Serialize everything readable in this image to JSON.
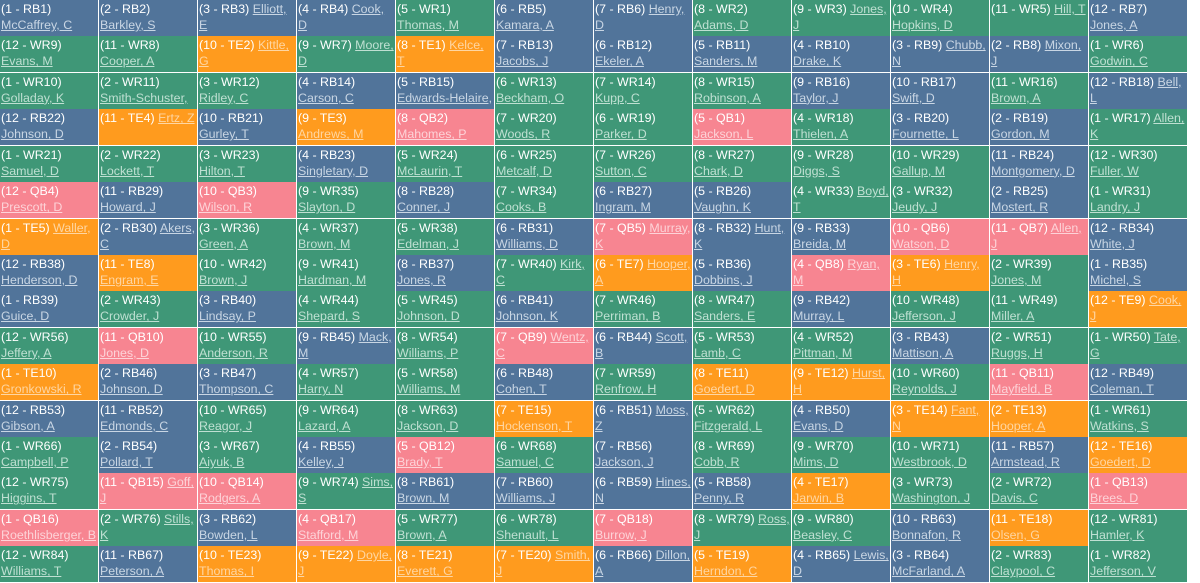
{
  "colors": {
    "RB": "#51749a",
    "WR": "#3f9777",
    "TE": "#ff9b1e",
    "QB": "#f78591"
  },
  "rows": [
    [
      {
        "pick": "(1 - RB1)",
        "player": "McCaffrey, C",
        "pos": "RB"
      },
      {
        "pick": "(2 - RB2)",
        "player": "Barkley, S",
        "pos": "RB"
      },
      {
        "pick": "(3 - RB3)",
        "player": "Elliott, E",
        "pos": "RB"
      },
      {
        "pick": "(4 - RB4)",
        "player": "Cook, D",
        "pos": "RB"
      },
      {
        "pick": "(5 - WR1)",
        "player": "Thomas, M",
        "pos": "WR"
      },
      {
        "pick": "(6 - RB5)",
        "player": "Kamara, A",
        "pos": "RB"
      },
      {
        "pick": "(7 - RB6)",
        "player": "Henry, D",
        "pos": "RB"
      },
      {
        "pick": "(8 - WR2)",
        "player": "Adams, D",
        "pos": "WR"
      },
      {
        "pick": "(9 - WR3)",
        "player": "Jones, J",
        "pos": "WR"
      },
      {
        "pick": "(10 - WR4)",
        "player": "Hopkins, D",
        "pos": "WR"
      },
      {
        "pick": "(11 - WR5)",
        "player": "Hill, T",
        "pos": "WR"
      },
      {
        "pick": "(12 - RB7)",
        "player": "Jones, A",
        "pos": "RB"
      }
    ],
    [
      {
        "pick": "(12 - WR9)",
        "player": "Evans, M",
        "pos": "WR"
      },
      {
        "pick": "(11 - WR8)",
        "player": "Cooper, A",
        "pos": "WR"
      },
      {
        "pick": "(10 - TE2)",
        "player": "Kittle, G",
        "pos": "TE"
      },
      {
        "pick": "(9 - WR7)",
        "player": "Moore, D",
        "pos": "WR"
      },
      {
        "pick": "(8 - TE1)",
        "player": "Kelce, T",
        "pos": "TE"
      },
      {
        "pick": "(7 - RB13)",
        "player": "Jacobs, J",
        "pos": "RB"
      },
      {
        "pick": "(6 - RB12)",
        "player": "Ekeler, A",
        "pos": "RB"
      },
      {
        "pick": "(5 - RB11)",
        "player": "Sanders, M",
        "pos": "RB"
      },
      {
        "pick": "(4 - RB10)",
        "player": "Drake, K",
        "pos": "RB"
      },
      {
        "pick": "(3 - RB9)",
        "player": "Chubb, N",
        "pos": "RB"
      },
      {
        "pick": "(2 - RB8)",
        "player": "Mixon, J",
        "pos": "RB"
      },
      {
        "pick": "(1 - WR6)",
        "player": "Godwin, C",
        "pos": "WR"
      }
    ],
    [
      {
        "pick": "(1 - WR10)",
        "player": "Golladay, K",
        "pos": "WR"
      },
      {
        "pick": "(2 - WR11)",
        "player": "Smith-Schuster, J",
        "pos": "WR"
      },
      {
        "pick": "(3 - WR12)",
        "player": "Ridley, C",
        "pos": "WR"
      },
      {
        "pick": "(4 - RB14)",
        "player": "Carson, C",
        "pos": "RB"
      },
      {
        "pick": "(5 - RB15)",
        "player": "Edwards-Helaire, C",
        "pos": "RB"
      },
      {
        "pick": "(6 - WR13)",
        "player": "Beckham, O",
        "pos": "WR"
      },
      {
        "pick": "(7 - WR14)",
        "player": "Kupp, C",
        "pos": "WR"
      },
      {
        "pick": "(8 - WR15)",
        "player": "Robinson, A",
        "pos": "WR"
      },
      {
        "pick": "(9 - RB16)",
        "player": "Taylor, J",
        "pos": "RB"
      },
      {
        "pick": "(10 - RB17)",
        "player": "Swift, D",
        "pos": "RB"
      },
      {
        "pick": "(11 - WR16)",
        "player": "Brown, A",
        "pos": "WR"
      },
      {
        "pick": "(12 - RB18)",
        "player": "Bell, L",
        "pos": "RB"
      }
    ],
    [
      {
        "pick": "(12 - RB22)",
        "player": "Johnson, D",
        "pos": "RB"
      },
      {
        "pick": "(11 - TE4)",
        "player": "Ertz, Z",
        "pos": "TE"
      },
      {
        "pick": "(10 - RB21)",
        "player": "Gurley, T",
        "pos": "RB"
      },
      {
        "pick": "(9 - TE3)",
        "player": "Andrews, M",
        "pos": "TE"
      },
      {
        "pick": "(8 - QB2)",
        "player": "Mahomes, P",
        "pos": "QB"
      },
      {
        "pick": "(7 - WR20)",
        "player": "Woods, R",
        "pos": "WR"
      },
      {
        "pick": "(6 - WR19)",
        "player": "Parker, D",
        "pos": "WR"
      },
      {
        "pick": "(5 - QB1)",
        "player": "Jackson, L",
        "pos": "QB"
      },
      {
        "pick": "(4 - WR18)",
        "player": "Thielen, A",
        "pos": "WR"
      },
      {
        "pick": "(3 - RB20)",
        "player": "Fournette, L",
        "pos": "RB"
      },
      {
        "pick": "(2 - RB19)",
        "player": "Gordon, M",
        "pos": "RB"
      },
      {
        "pick": "(1 - WR17)",
        "player": "Allen, K",
        "pos": "WR"
      }
    ],
    [
      {
        "pick": "(1 - WR21)",
        "player": "Samuel, D",
        "pos": "WR"
      },
      {
        "pick": "(2 - WR22)",
        "player": "Lockett, T",
        "pos": "WR"
      },
      {
        "pick": "(3 - WR23)",
        "player": "Hilton, T",
        "pos": "WR"
      },
      {
        "pick": "(4 - RB23)",
        "player": "Singletary, D",
        "pos": "RB"
      },
      {
        "pick": "(5 - WR24)",
        "player": "McLaurin, T",
        "pos": "WR"
      },
      {
        "pick": "(6 - WR25)",
        "player": "Metcalf, D",
        "pos": "WR"
      },
      {
        "pick": "(7 - WR26)",
        "player": "Sutton, C",
        "pos": "WR"
      },
      {
        "pick": "(8 - WR27)",
        "player": "Chark, D",
        "pos": "WR"
      },
      {
        "pick": "(9 - WR28)",
        "player": "Diggs, S",
        "pos": "WR"
      },
      {
        "pick": "(10 - WR29)",
        "player": "Gallup, M",
        "pos": "WR"
      },
      {
        "pick": "(11 - RB24)",
        "player": "Montgomery, D",
        "pos": "RB"
      },
      {
        "pick": "(12 - WR30)",
        "player": "Fuller, W",
        "pos": "WR"
      }
    ],
    [
      {
        "pick": "(12 - QB4)",
        "player": "Prescott, D",
        "pos": "QB"
      },
      {
        "pick": "(11 - RB29)",
        "player": "Howard, J",
        "pos": "RB"
      },
      {
        "pick": "(10 - QB3)",
        "player": "Wilson, R",
        "pos": "QB"
      },
      {
        "pick": "(9 - WR35)",
        "player": "Slayton, D",
        "pos": "WR"
      },
      {
        "pick": "(8 - RB28)",
        "player": "Conner, J",
        "pos": "RB"
      },
      {
        "pick": "(7 - WR34)",
        "player": "Cooks, B",
        "pos": "WR"
      },
      {
        "pick": "(6 - RB27)",
        "player": "Ingram, M",
        "pos": "RB"
      },
      {
        "pick": "(5 - RB26)",
        "player": "Vaughn, K",
        "pos": "RB"
      },
      {
        "pick": "(4 - WR33)",
        "player": "Boyd, T",
        "pos": "WR"
      },
      {
        "pick": "(3 - WR32)",
        "player": "Jeudy, J",
        "pos": "WR"
      },
      {
        "pick": "(2 - RB25)",
        "player": "Mostert, R",
        "pos": "RB"
      },
      {
        "pick": "(1 - WR31)",
        "player": "Landry, J",
        "pos": "WR"
      }
    ],
    [
      {
        "pick": "(1 - TE5)",
        "player": "Waller, D",
        "pos": "TE"
      },
      {
        "pick": "(2 - RB30)",
        "player": "Akers, C",
        "pos": "RB"
      },
      {
        "pick": "(3 - WR36)",
        "player": "Green, A",
        "pos": "WR"
      },
      {
        "pick": "(4 - WR37)",
        "player": "Brown, M",
        "pos": "WR"
      },
      {
        "pick": "(5 - WR38)",
        "player": "Edelman, J",
        "pos": "WR"
      },
      {
        "pick": "(6 - RB31)",
        "player": "Williams, D",
        "pos": "RB"
      },
      {
        "pick": "(7 - QB5)",
        "player": "Murray, K",
        "pos": "QB"
      },
      {
        "pick": "(8 - RB32)",
        "player": "Hunt, K",
        "pos": "RB"
      },
      {
        "pick": "(9 - RB33)",
        "player": "Breida, M",
        "pos": "RB"
      },
      {
        "pick": "(10 - QB6)",
        "player": "Watson, D",
        "pos": "QB"
      },
      {
        "pick": "(11 - QB7)",
        "player": "Allen, J",
        "pos": "QB"
      },
      {
        "pick": "(12 - RB34)",
        "player": "White, J",
        "pos": "RB"
      }
    ],
    [
      {
        "pick": "(12 - RB38)",
        "player": "Henderson, D",
        "pos": "RB"
      },
      {
        "pick": "(11 - TE8)",
        "player": "Engram, E",
        "pos": "TE"
      },
      {
        "pick": "(10 - WR42)",
        "player": "Brown, J",
        "pos": "WR"
      },
      {
        "pick": "(9 - WR41)",
        "player": "Hardman, M",
        "pos": "WR"
      },
      {
        "pick": "(8 - RB37)",
        "player": "Jones, R",
        "pos": "RB"
      },
      {
        "pick": "(7 - WR40)",
        "player": "Kirk, C",
        "pos": "WR"
      },
      {
        "pick": "(6 - TE7)",
        "player": "Hooper, A",
        "pos": "TE"
      },
      {
        "pick": "(5 - RB36)",
        "player": "Dobbins, J",
        "pos": "RB"
      },
      {
        "pick": "(4 - QB8)",
        "player": "Ryan, M",
        "pos": "QB"
      },
      {
        "pick": "(3 - TE6)",
        "player": "Henry, H",
        "pos": "TE"
      },
      {
        "pick": "(2 - WR39)",
        "player": "Jones, M",
        "pos": "WR"
      },
      {
        "pick": "(1 - RB35)",
        "player": "Michel, S",
        "pos": "RB"
      }
    ],
    [
      {
        "pick": "(1 - RB39)",
        "player": "Guice, D",
        "pos": "RB"
      },
      {
        "pick": "(2 - WR43)",
        "player": "Crowder, J",
        "pos": "WR"
      },
      {
        "pick": "(3 - RB40)",
        "player": "Lindsay, P",
        "pos": "RB"
      },
      {
        "pick": "(4 - WR44)",
        "player": "Shepard, S",
        "pos": "WR"
      },
      {
        "pick": "(5 - WR45)",
        "player": "Johnson, D",
        "pos": "WR"
      },
      {
        "pick": "(6 - RB41)",
        "player": "Johnson, K",
        "pos": "RB"
      },
      {
        "pick": "(7 - WR46)",
        "player": "Perriman, B",
        "pos": "WR"
      },
      {
        "pick": "(8 - WR47)",
        "player": "Sanders, E",
        "pos": "WR"
      },
      {
        "pick": "(9 - RB42)",
        "player": "Murray, L",
        "pos": "RB"
      },
      {
        "pick": "(10 - WR48)",
        "player": "Jefferson, J",
        "pos": "WR"
      },
      {
        "pick": "(11 - WR49)",
        "player": "Miller, A",
        "pos": "WR"
      },
      {
        "pick": "(12 - TE9)",
        "player": "Cook, J",
        "pos": "TE"
      }
    ],
    [
      {
        "pick": "(12 - WR56)",
        "player": "Jeffery, A",
        "pos": "WR"
      },
      {
        "pick": "(11 - QB10)",
        "player": "Jones, D",
        "pos": "QB"
      },
      {
        "pick": "(10 - WR55)",
        "player": "Anderson, R",
        "pos": "WR"
      },
      {
        "pick": "(9 - RB45)",
        "player": "Mack, M",
        "pos": "RB"
      },
      {
        "pick": "(8 - WR54)",
        "player": "Williams, P",
        "pos": "WR"
      },
      {
        "pick": "(7 - QB9)",
        "player": "Wentz, C",
        "pos": "QB"
      },
      {
        "pick": "(6 - RB44)",
        "player": "Scott, B",
        "pos": "RB"
      },
      {
        "pick": "(5 - WR53)",
        "player": "Lamb, C",
        "pos": "WR"
      },
      {
        "pick": "(4 - WR52)",
        "player": "Pittman, M",
        "pos": "WR"
      },
      {
        "pick": "(3 - RB43)",
        "player": "Mattison, A",
        "pos": "RB"
      },
      {
        "pick": "(2 - WR51)",
        "player": "Ruggs, H",
        "pos": "WR"
      },
      {
        "pick": "(1 - WR50)",
        "player": "Tate, G",
        "pos": "WR"
      }
    ],
    [
      {
        "pick": "(1 - TE10)",
        "player": "Gronkowski, R",
        "pos": "TE"
      },
      {
        "pick": "(2 - RB46)",
        "player": "Johnson, D",
        "pos": "RB"
      },
      {
        "pick": "(3 - RB47)",
        "player": "Thompson, C",
        "pos": "RB"
      },
      {
        "pick": "(4 - WR57)",
        "player": "Harry, N",
        "pos": "WR"
      },
      {
        "pick": "(5 - WR58)",
        "player": "Williams, M",
        "pos": "WR"
      },
      {
        "pick": "(6 - RB48)",
        "player": "Cohen, T",
        "pos": "RB"
      },
      {
        "pick": "(7 - WR59)",
        "player": "Renfrow, H",
        "pos": "WR"
      },
      {
        "pick": "(8 - TE11)",
        "player": "Goedert, D",
        "pos": "TE"
      },
      {
        "pick": "(9 - TE12)",
        "player": "Hurst, H",
        "pos": "TE"
      },
      {
        "pick": "(10 - WR60)",
        "player": "Reynolds, J",
        "pos": "WR"
      },
      {
        "pick": "(11 - QB11)",
        "player": "Mayfield, B",
        "pos": "QB"
      },
      {
        "pick": "(12 - RB49)",
        "player": "Coleman, T",
        "pos": "RB"
      }
    ],
    [
      {
        "pick": "(12 - RB53)",
        "player": "Gibson, A",
        "pos": "RB"
      },
      {
        "pick": "(11 - RB52)",
        "player": "Edmonds, C",
        "pos": "RB"
      },
      {
        "pick": "(10 - WR65)",
        "player": "Reagor, J",
        "pos": "WR"
      },
      {
        "pick": "(9 - WR64)",
        "player": "Lazard, A",
        "pos": "WR"
      },
      {
        "pick": "(8 - WR63)",
        "player": "Jackson, D",
        "pos": "WR"
      },
      {
        "pick": "(7 - TE15)",
        "player": "Hockenson, T",
        "pos": "TE"
      },
      {
        "pick": "(6 - RB51)",
        "player": "Moss, Z",
        "pos": "RB"
      },
      {
        "pick": "(5 - WR62)",
        "player": "Fitzgerald, L",
        "pos": "WR"
      },
      {
        "pick": "(4 - RB50)",
        "player": "Evans, D",
        "pos": "RB"
      },
      {
        "pick": "(3 - TE14)",
        "player": "Fant, N",
        "pos": "TE"
      },
      {
        "pick": "(2 - TE13)",
        "player": "Hooper, A",
        "pos": "TE"
      },
      {
        "pick": "(1 - WR61)",
        "player": "Watkins, S",
        "pos": "WR"
      }
    ],
    [
      {
        "pick": "(1 - WR66)",
        "player": "Campbell, P",
        "pos": "WR"
      },
      {
        "pick": "(2 - RB54)",
        "player": "Pollard, T",
        "pos": "RB"
      },
      {
        "pick": "(3 - WR67)",
        "player": "Aiyuk, B",
        "pos": "WR"
      },
      {
        "pick": "(4 - RB55)",
        "player": "Kelley, J",
        "pos": "RB"
      },
      {
        "pick": "(5 - QB12)",
        "player": "Brady, T",
        "pos": "QB"
      },
      {
        "pick": "(6 - WR68)",
        "player": "Samuel, C",
        "pos": "WR"
      },
      {
        "pick": "(7 - RB56)",
        "player": "Jackson, J",
        "pos": "RB"
      },
      {
        "pick": "(8 - WR69)",
        "player": "Cobb, R",
        "pos": "WR"
      },
      {
        "pick": "(9 - WR70)",
        "player": "Mims, D",
        "pos": "WR"
      },
      {
        "pick": "(10 - WR71)",
        "player": "Westbrook, D",
        "pos": "WR"
      },
      {
        "pick": "(11 - RB57)",
        "player": "Armstead, R",
        "pos": "RB"
      },
      {
        "pick": "(12 - TE16)",
        "player": "Goedert, D",
        "pos": "TE"
      }
    ],
    [
      {
        "pick": "(12 - WR75)",
        "player": "Higgins, T",
        "pos": "WR"
      },
      {
        "pick": "(11 - QB15)",
        "player": "Goff, J",
        "pos": "QB"
      },
      {
        "pick": "(10 - QB14)",
        "player": "Rodgers, A",
        "pos": "QB"
      },
      {
        "pick": "(9 - WR74)",
        "player": "Sims, S",
        "pos": "WR"
      },
      {
        "pick": "(8 - RB61)",
        "player": "Brown, M",
        "pos": "RB"
      },
      {
        "pick": "(7 - RB60)",
        "player": "Williams, J",
        "pos": "RB"
      },
      {
        "pick": "(6 - RB59)",
        "player": "Hines, N",
        "pos": "RB"
      },
      {
        "pick": "(5 - RB58)",
        "player": "Penny, R",
        "pos": "RB"
      },
      {
        "pick": "(4 - TE17)",
        "player": "Jarwin, B",
        "pos": "TE"
      },
      {
        "pick": "(3 - WR73)",
        "player": "Washington, J",
        "pos": "WR"
      },
      {
        "pick": "(2 - WR72)",
        "player": "Davis, C",
        "pos": "WR"
      },
      {
        "pick": "(1 - QB13)",
        "player": "Brees, D",
        "pos": "QB"
      }
    ],
    [
      {
        "pick": "(1 - QB16)",
        "player": "Roethlisberger, B",
        "pos": "QB"
      },
      {
        "pick": "(2 - WR76)",
        "player": "Stills, K",
        "pos": "WR"
      },
      {
        "pick": "(3 - RB62)",
        "player": "Bowden, L",
        "pos": "RB"
      },
      {
        "pick": "(4 - QB17)",
        "player": "Stafford, M",
        "pos": "QB"
      },
      {
        "pick": "(5 - WR77)",
        "player": "Brown, A",
        "pos": "WR"
      },
      {
        "pick": "(6 - WR78)",
        "player": "Shenault, L",
        "pos": "WR"
      },
      {
        "pick": "(7 - QB18)",
        "player": "Burrow, J",
        "pos": "QB"
      },
      {
        "pick": "(8 - WR79)",
        "player": "Ross, J",
        "pos": "WR"
      },
      {
        "pick": "(9 - WR80)",
        "player": "Beasley, C",
        "pos": "WR"
      },
      {
        "pick": "(10 - RB63)",
        "player": "Bonnafon, R",
        "pos": "RB"
      },
      {
        "pick": "(11 - TE18)",
        "player": "Olsen, G",
        "pos": "TE"
      },
      {
        "pick": "(12 - WR81)",
        "player": "Hamler, K",
        "pos": "WR"
      }
    ],
    [
      {
        "pick": "(12 - WR84)",
        "player": "Williams, T",
        "pos": "WR"
      },
      {
        "pick": "(11 - RB67)",
        "player": "Peterson, A",
        "pos": "RB"
      },
      {
        "pick": "(10 - TE23)",
        "player": "Thomas, I",
        "pos": "TE"
      },
      {
        "pick": "(9 - TE22)",
        "player": "Doyle, J",
        "pos": "TE"
      },
      {
        "pick": "(8 - TE21)",
        "player": "Everett, G",
        "pos": "TE"
      },
      {
        "pick": "(7 - TE20)",
        "player": "Smith, J",
        "pos": "TE"
      },
      {
        "pick": "(6 - RB66)",
        "player": "Dillon, A",
        "pos": "RB"
      },
      {
        "pick": "(5 - TE19)",
        "player": "Herndon, C",
        "pos": "TE"
      },
      {
        "pick": "(4 - RB65)",
        "player": "Lewis, D",
        "pos": "RB"
      },
      {
        "pick": "(3 - RB64)",
        "player": "McFarland, A",
        "pos": "RB"
      },
      {
        "pick": "(2 - WR83)",
        "player": "Claypool, C",
        "pos": "WR"
      },
      {
        "pick": "(1 - WR82)",
        "player": "Jefferson, V",
        "pos": "WR"
      }
    ]
  ]
}
